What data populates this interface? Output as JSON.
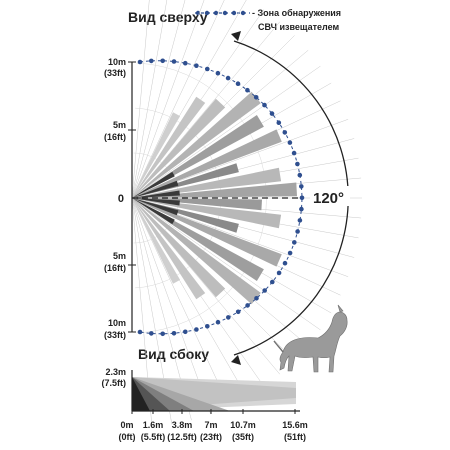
{
  "top_view": {
    "title": "Вид сверху",
    "y_labels": [
      {
        "meters": "10m",
        "feet": "(33ft)"
      },
      {
        "meters": "5m",
        "feet": "(16ft)"
      },
      {
        "meters": "0",
        "feet": ""
      },
      {
        "meters": "5m",
        "feet": "(16ft)"
      },
      {
        "meters": "10m",
        "feet": "(33ft)"
      }
    ],
    "angle_label": "120°",
    "detection_angle_deg": 120,
    "range_m": 10
  },
  "legend": {
    "line1": "- Зона обнаружения",
    "line2": "СВЧ извещателем",
    "marker_color": "#2f4f8f"
  },
  "side_view": {
    "title": "Вид сбоку",
    "height_label": {
      "meters": "2.3m",
      "feet": "(7.5ft)"
    },
    "x_labels": [
      {
        "meters": "0m",
        "feet": "(0ft)"
      },
      {
        "meters": "1.6m",
        "feet": "(5.5ft)"
      },
      {
        "meters": "3.8m",
        "feet": "(12.5ft)"
      },
      {
        "meters": "7m",
        "feet": "(23ft)"
      },
      {
        "meters": "10.7m",
        "feet": "(35ft)"
      },
      {
        "meters": "15.6m",
        "feet": "(51ft)"
      }
    ]
  },
  "dog_icon": "dog-silhouette-icon"
}
